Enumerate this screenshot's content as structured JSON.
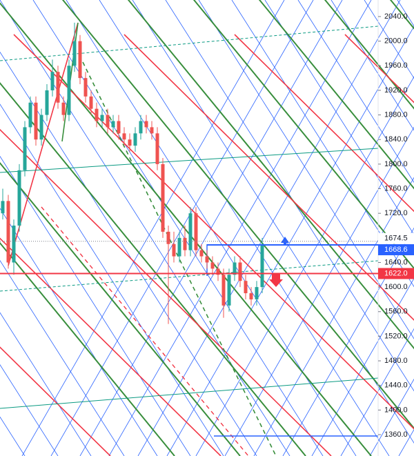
{
  "chart_data": {
    "type": "candlestick",
    "ylim": [
      1360,
      2040
    ],
    "yticks": [
      {
        "value": 1360,
        "label": "1360.0"
      },
      {
        "value": 1400,
        "label": "1400.0"
      },
      {
        "value": 1440,
        "label": "1440.0"
      },
      {
        "value": 1480,
        "label": "1480.0"
      },
      {
        "value": 1520,
        "label": "1520.0"
      },
      {
        "value": 1560,
        "label": "1560.0"
      },
      {
        "value": 1600,
        "label": "1600.0"
      },
      {
        "value": 1640,
        "label": "1640.0"
      },
      {
        "value": 1720,
        "label": "1720.0"
      },
      {
        "value": 1760,
        "label": "1760.0"
      },
      {
        "value": 1800,
        "label": "1800.0"
      },
      {
        "value": 1840,
        "label": "1840.0"
      },
      {
        "value": 1880,
        "label": "1880.0"
      },
      {
        "value": 1920,
        "label": "1920.0"
      },
      {
        "value": 1960,
        "label": "1960.0"
      },
      {
        "value": 2000,
        "label": "2000.0"
      },
      {
        "value": 2040,
        "label": "2040.0"
      }
    ],
    "up_color": "#26a69a",
    "down_color": "#ef5350",
    "open": [
      1720,
      1740,
      1640,
      1700,
      1790,
      1860,
      1900,
      1840,
      1880,
      1920,
      1950,
      1900,
      1880,
      1960,
      2000,
      1940,
      1910,
      1890,
      1870,
      1880,
      1860,
      1870,
      1850,
      1840,
      1830,
      1850,
      1870,
      1860,
      1850,
      1800,
      1690,
      1670,
      1650,
      1680,
      1660,
      1720,
      1660,
      1650,
      1640,
      1630,
      1620,
      1570,
      1620,
      1640,
      1610,
      1590,
      1580,
      1600
    ],
    "high": [
      1760,
      1750,
      1710,
      1800,
      1870,
      1910,
      1910,
      1890,
      1930,
      1970,
      1960,
      1910,
      1970,
      2030,
      2010,
      1950,
      1920,
      1900,
      1890,
      1890,
      1880,
      1880,
      1860,
      1850,
      1860,
      1880,
      1880,
      1870,
      1860,
      1810,
      1700,
      1690,
      1690,
      1700,
      1730,
      1730,
      1670,
      1660,
      1650,
      1640,
      1630,
      1630,
      1650,
      1650,
      1620,
      1600,
      1610,
      1680
    ],
    "low": [
      1710,
      1630,
      1620,
      1690,
      1780,
      1850,
      1830,
      1830,
      1870,
      1910,
      1890,
      1870,
      1870,
      1950,
      1930,
      1900,
      1880,
      1860,
      1860,
      1850,
      1850,
      1840,
      1830,
      1820,
      1820,
      1840,
      1850,
      1840,
      1790,
      1680,
      1540,
      1640,
      1640,
      1650,
      1650,
      1650,
      1640,
      1630,
      1620,
      1610,
      1550,
      1560,
      1610,
      1600,
      1580,
      1570,
      1570,
      1590
    ],
    "close": [
      1740,
      1640,
      1700,
      1790,
      1860,
      1900,
      1840,
      1880,
      1920,
      1950,
      1900,
      1880,
      1960,
      2000,
      1940,
      1910,
      1890,
      1870,
      1880,
      1860,
      1870,
      1850,
      1840,
      1830,
      1850,
      1870,
      1860,
      1850,
      1800,
      1690,
      1670,
      1650,
      1680,
      1660,
      1720,
      1660,
      1650,
      1640,
      1630,
      1620,
      1570,
      1620,
      1640,
      1610,
      1590,
      1580,
      1600,
      1670
    ],
    "price_labels": [
      {
        "value": 1674.5,
        "label": "1674.5",
        "color": "#787b86"
      },
      {
        "value": 1668.6,
        "label": "1668.6",
        "color": "#2962ff"
      },
      {
        "value": 1622,
        "label": "1622.0",
        "color": "#f23645"
      }
    ]
  }
}
